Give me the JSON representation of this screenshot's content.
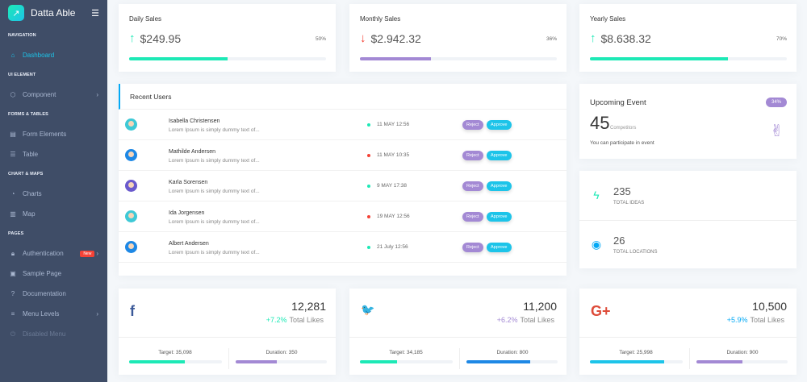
{
  "app": {
    "title": "Datta Able"
  },
  "sidebar": {
    "sections": [
      {
        "caption": "NAVIGATION",
        "items": [
          {
            "label": "Dashboard",
            "icon": "home-icon",
            "active": true
          }
        ]
      },
      {
        "caption": "UI ELEMENT",
        "items": [
          {
            "label": "Component",
            "icon": "box-icon",
            "chevron": true
          }
        ]
      },
      {
        "caption": "FORMS & TABLES",
        "items": [
          {
            "label": "Form Elements",
            "icon": "file-text-icon"
          },
          {
            "label": "Table",
            "icon": "server-icon"
          }
        ]
      },
      {
        "caption": "CHART & MAPS",
        "items": [
          {
            "label": "Charts",
            "icon": "pie-chart-icon"
          },
          {
            "label": "Map",
            "icon": "map-icon"
          }
        ]
      },
      {
        "caption": "PAGES",
        "items": [
          {
            "label": "Authentication",
            "icon": "lock-icon",
            "badge": "New",
            "chevron": true
          },
          {
            "label": "Sample Page",
            "icon": "sidebar-icon"
          },
          {
            "label": "Documentation",
            "icon": "help-circle-icon"
          },
          {
            "label": "Menu Levels",
            "icon": "menu-icon",
            "chevron": true
          },
          {
            "label": "Disabled Menu",
            "icon": "power-icon",
            "disabled": true
          }
        ]
      }
    ]
  },
  "sales": [
    {
      "title": "Daily Sales",
      "value": "$249.95",
      "trend": "up",
      "percent": 50,
      "percent_label": "50%",
      "color": "#1de9b6"
    },
    {
      "title": "Monthly Sales",
      "value": "$2.942.32",
      "trend": "down",
      "percent": 36,
      "percent_label": "36%",
      "color": "#a389d4"
    },
    {
      "title": "Yearly Sales",
      "value": "$8.638.32",
      "trend": "up",
      "percent": 70,
      "percent_label": "70%",
      "color": "#1de9b6"
    }
  ],
  "recent_users": {
    "title": "Recent Users",
    "reject_label": "Reject",
    "approve_label": "Approve",
    "rows": [
      {
        "name": "Isabella Christensen",
        "desc": "Lorem Ipsum is simply dummy text of...",
        "date": "11 MAY 12:56",
        "status": "green"
      },
      {
        "name": "Mathilde Andersen",
        "desc": "Lorem Ipsum is simply dummy text of...",
        "date": "11 MAY 10:35",
        "status": "red"
      },
      {
        "name": "Karla Sorensen",
        "desc": "Lorem Ipsum is simply dummy text of...",
        "date": "9 MAY 17:38",
        "status": "green"
      },
      {
        "name": "Ida Jorgensen",
        "desc": "Lorem Ipsum is simply dummy text of...",
        "date": "19 MAY 12:56",
        "status": "red"
      },
      {
        "name": "Albert Andersen",
        "desc": "Lorem Ipsum is simply dummy text of...",
        "date": "21 July 12:56",
        "status": "green"
      }
    ]
  },
  "event": {
    "title": "Upcoming Event",
    "badge": "34%",
    "count": "45",
    "count_label": "Competitors",
    "text": "You can participate in event"
  },
  "stats": [
    {
      "value": "235",
      "label": "TOTAL IDEAS",
      "icon": "zap-icon",
      "color": "#1de9b6"
    },
    {
      "value": "26",
      "label": "TOTAL LOCATIONS",
      "icon": "map-pin-icon",
      "color": "#04a9f5"
    }
  ],
  "social": [
    {
      "network": "facebook",
      "icon": "f",
      "color": "#3b5998",
      "value": "12,281",
      "change": "+7.2%",
      "change_color": "#1de9b6",
      "label": "Total Likes",
      "target": "Target: 35,098",
      "duration": "Duration: 350",
      "target_pct": 60,
      "duration_pct": 45,
      "target_color": "#1de9b6",
      "duration_color": "#a389d4"
    },
    {
      "network": "twitter",
      "icon": "🐦",
      "color": "#1da1f2",
      "value": "11,200",
      "change": "+6.2%",
      "change_color": "#a389d4",
      "label": "Total Likes",
      "target": "Target: 34,185",
      "duration": "Duration: 800",
      "target_pct": 40,
      "duration_pct": 70,
      "target_color": "#1de9b6",
      "duration_color": "#1e88e5"
    },
    {
      "network": "google-plus",
      "icon": "G+",
      "color": "#dd4b39",
      "value": "10,500",
      "change": "+5.9%",
      "change_color": "#04a9f5",
      "label": "Total Likes",
      "target": "Target: 25,998",
      "duration": "Duration: 900",
      "target_pct": 80,
      "duration_pct": 50,
      "target_color": "#1dc4e9",
      "duration_color": "#a389d4"
    }
  ]
}
